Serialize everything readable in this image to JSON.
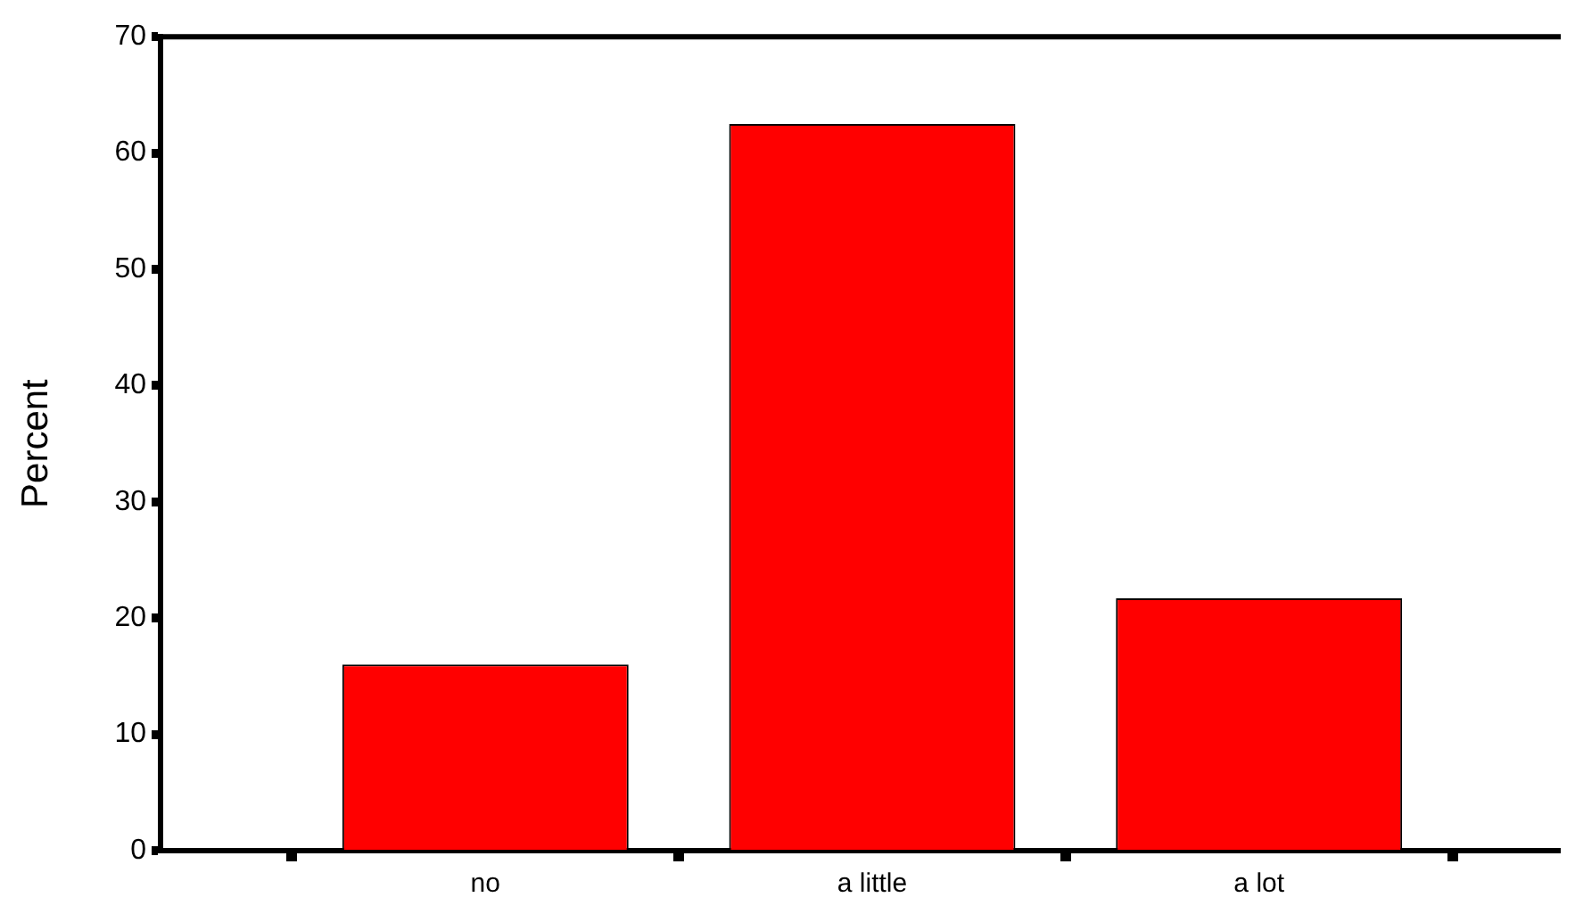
{
  "chart_data": {
    "type": "bar",
    "ylabel": "Percent",
    "categories": [
      "no",
      "a little",
      "a lot"
    ],
    "values": [
      16.0,
      62.5,
      21.7
    ],
    "color": "#ff0000",
    "ylim": [
      0,
      70
    ],
    "yticks": [
      0,
      10,
      20,
      30,
      40,
      50,
      60,
      70
    ]
  }
}
